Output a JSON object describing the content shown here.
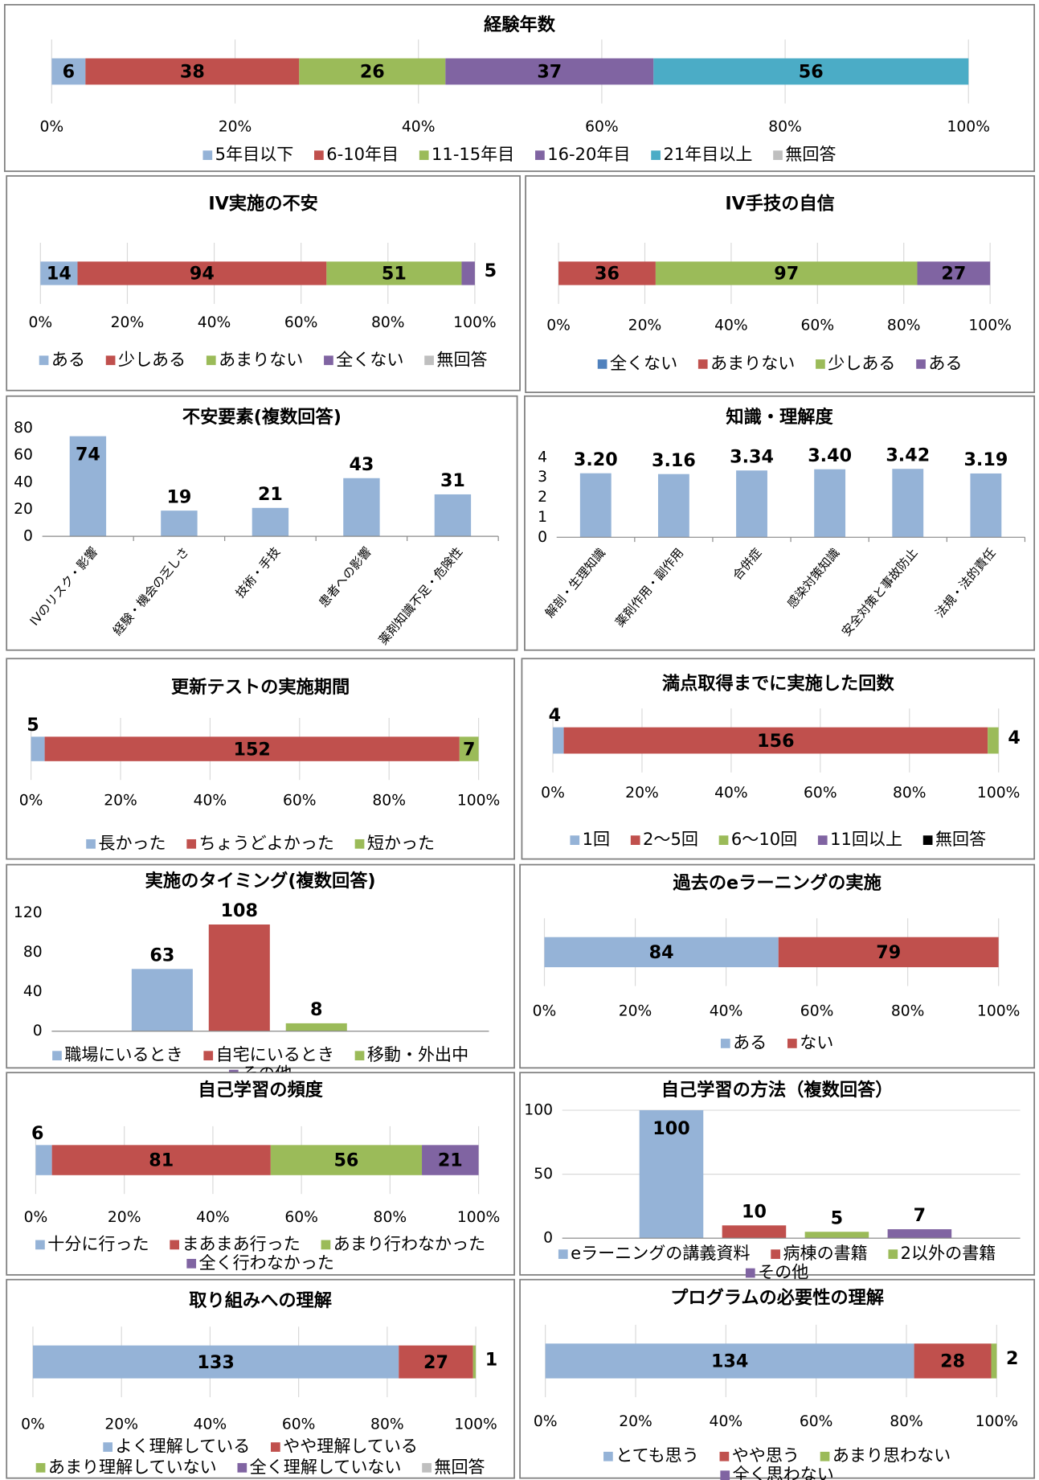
{
  "chart_data": [
    {
      "type": "stackedbar",
      "title": "経験年数",
      "xlim": [
        0,
        100
      ],
      "xticks": [
        {
          "value": 0,
          "label": "0%"
        },
        {
          "value": 20,
          "label": "20%"
        },
        {
          "value": 40,
          "label": "40%"
        },
        {
          "value": 60,
          "label": "60%"
        },
        {
          "value": 80,
          "label": "80%"
        },
        {
          "value": 100,
          "label": "100%"
        }
      ],
      "grid": true,
      "series": [
        {
          "name": "5年目以下",
          "color": "#95b3d7",
          "values": [
            6
          ]
        },
        {
          "name": "6-10年目",
          "color": "#c0504d",
          "values": [
            38
          ]
        },
        {
          "name": "11-15年目",
          "color": "#9bbb59",
          "values": [
            26
          ]
        },
        {
          "name": "16-20年目",
          "color": "#8064a2",
          "values": [
            37
          ]
        },
        {
          "name": "21年目以上",
          "color": "#4bacc6",
          "values": [
            56
          ]
        },
        {
          "name": "無回答",
          "color": "#bfbfbf",
          "values": [
            0
          ]
        }
      ]
    },
    {
      "type": "stackedbar",
      "title": "IV実施の不安",
      "xlim": [
        0,
        100
      ],
      "xticks": [
        {
          "value": 0,
          "label": "0%"
        },
        {
          "value": 20,
          "label": "20%"
        },
        {
          "value": 40,
          "label": "40%"
        },
        {
          "value": 60,
          "label": "60%"
        },
        {
          "value": 80,
          "label": "80%"
        },
        {
          "value": 100,
          "label": "100%"
        }
      ],
      "grid": true,
      "series": [
        {
          "name": "ある",
          "color": "#95b3d7",
          "values": [
            14
          ]
        },
        {
          "name": "少しある",
          "color": "#c0504d",
          "values": [
            94
          ]
        },
        {
          "name": "あまりない",
          "color": "#9bbb59",
          "values": [
            51
          ]
        },
        {
          "name": "全くない",
          "color": "#8064a2",
          "values": [
            5
          ]
        },
        {
          "name": "無回答",
          "color": "#bfbfbf",
          "values": [
            0
          ]
        }
      ]
    },
    {
      "type": "stackedbar",
      "title": "IV手技の自信",
      "xlim": [
        0,
        100
      ],
      "xticks": [
        {
          "value": 0,
          "label": "0%"
        },
        {
          "value": 20,
          "label": "20%"
        },
        {
          "value": 40,
          "label": "40%"
        },
        {
          "value": 60,
          "label": "60%"
        },
        {
          "value": 80,
          "label": "80%"
        },
        {
          "value": 100,
          "label": "100%"
        }
      ],
      "grid": true,
      "series": [
        {
          "name": "全くない",
          "color": "#4f81bd",
          "values": [
            0
          ]
        },
        {
          "name": "あまりない",
          "color": "#c0504d",
          "values": [
            36
          ]
        },
        {
          "name": "少しある",
          "color": "#9bbb59",
          "values": [
            97
          ]
        },
        {
          "name": "ある",
          "color": "#8064a2",
          "values": [
            27
          ]
        }
      ]
    },
    {
      "type": "bar",
      "title": "不安要素(複数回答)",
      "categories": [
        "IVのリスク・影響",
        "経験・機会の乏しさ",
        "技術・手技",
        "患者への影響",
        "薬剤知識不足・危険性"
      ],
      "values": [
        74,
        19,
        21,
        43,
        31
      ],
      "color": "#95b3d7",
      "ylim": [
        0,
        80
      ],
      "yticks": [
        0,
        20,
        40,
        60,
        80
      ],
      "grid": false
    },
    {
      "type": "bar",
      "title": "知識・理解度",
      "categories": [
        "解剖・生理知識",
        "薬剤作用・副作用",
        "合併症",
        "感染対策知識",
        "安全対策と事故防止",
        "法規・法的責任"
      ],
      "values": [
        3.2,
        3.16,
        3.34,
        3.4,
        3.42,
        3.19
      ],
      "value_labels": [
        "3.20",
        "3.16",
        "3.34",
        "3.40",
        "3.42",
        "3.19"
      ],
      "color": "#95b3d7",
      "ylim": [
        0,
        4
      ],
      "yticks": [
        0,
        1,
        2,
        3,
        4
      ],
      "grid": false
    },
    {
      "type": "stackedbar",
      "title": "更新テストの実施期間",
      "xlim": [
        0,
        100
      ],
      "xticks": [
        {
          "value": 0,
          "label": "0%"
        },
        {
          "value": 20,
          "label": "20%"
        },
        {
          "value": 40,
          "label": "40%"
        },
        {
          "value": 60,
          "label": "60%"
        },
        {
          "value": 80,
          "label": "80%"
        },
        {
          "value": 100,
          "label": "100%"
        }
      ],
      "grid": true,
      "series": [
        {
          "name": "長かった",
          "color": "#95b3d7",
          "values": [
            5
          ]
        },
        {
          "name": "ちょうどよかった",
          "color": "#c0504d",
          "values": [
            152
          ]
        },
        {
          "name": "短かった",
          "color": "#9bbb59",
          "values": [
            7
          ]
        }
      ]
    },
    {
      "type": "stackedbar",
      "title": "満点取得までに実施した回数",
      "xlim": [
        0,
        100
      ],
      "xticks": [
        {
          "value": 0,
          "label": "0%"
        },
        {
          "value": 20,
          "label": "20%"
        },
        {
          "value": 40,
          "label": "40%"
        },
        {
          "value": 60,
          "label": "60%"
        },
        {
          "value": 80,
          "label": "80%"
        },
        {
          "value": 100,
          "label": "100%"
        }
      ],
      "grid": true,
      "series": [
        {
          "name": "1回",
          "color": "#95b3d7",
          "values": [
            4
          ]
        },
        {
          "name": "2～5回",
          "color": "#c0504d",
          "values": [
            156
          ]
        },
        {
          "name": "6～10回",
          "color": "#9bbb59",
          "values": [
            4
          ]
        },
        {
          "name": "11回以上",
          "color": "#8064a2",
          "values": [
            0
          ]
        },
        {
          "name": "無回答",
          "color": "#000000",
          "values": [
            0
          ]
        }
      ]
    },
    {
      "type": "bar",
      "title": "実施のタイミング(複数回答)",
      "categories": [
        null
      ],
      "ylim": [
        0,
        120
      ],
      "yticks": [
        0,
        40,
        80,
        120
      ],
      "grid": false,
      "series": [
        {
          "name": "職場にいるとき",
          "color": "#95b3d7",
          "values": [
            63
          ]
        },
        {
          "name": "自宅にいるとき",
          "color": "#c0504d",
          "values": [
            108
          ]
        },
        {
          "name": "移動・外出中",
          "color": "#9bbb59",
          "values": [
            8
          ]
        },
        {
          "name": "その他",
          "color": "#8064a2",
          "values": [
            0
          ]
        }
      ]
    },
    {
      "type": "stackedbar",
      "title": "過去のeラーニングの実施",
      "xlim": [
        0,
        100
      ],
      "xticks": [
        {
          "value": 0,
          "label": "0%"
        },
        {
          "value": 20,
          "label": "20%"
        },
        {
          "value": 40,
          "label": "40%"
        },
        {
          "value": 60,
          "label": "60%"
        },
        {
          "value": 80,
          "label": "80%"
        },
        {
          "value": 100,
          "label": "100%"
        }
      ],
      "grid": true,
      "series": [
        {
          "name": "ある",
          "color": "#95b3d7",
          "values": [
            84
          ]
        },
        {
          "name": "ない",
          "color": "#c0504d",
          "values": [
            79
          ]
        }
      ]
    },
    {
      "type": "stackedbar",
      "title": "自己学習の頻度",
      "xlim": [
        0,
        100
      ],
      "xticks": [
        {
          "value": 0,
          "label": "0%"
        },
        {
          "value": 20,
          "label": "20%"
        },
        {
          "value": 40,
          "label": "40%"
        },
        {
          "value": 60,
          "label": "60%"
        },
        {
          "value": 80,
          "label": "80%"
        },
        {
          "value": 100,
          "label": "100%"
        }
      ],
      "grid": true,
      "series": [
        {
          "name": "十分に行った",
          "color": "#95b3d7",
          "values": [
            6
          ]
        },
        {
          "name": "まあまあ行った",
          "color": "#c0504d",
          "values": [
            81
          ]
        },
        {
          "name": "あまり行わなかった",
          "color": "#9bbb59",
          "values": [
            56
          ]
        },
        {
          "name": "全く行わなかった",
          "color": "#8064a2",
          "values": [
            21
          ]
        }
      ]
    },
    {
      "type": "bar",
      "title": "自己学習の方法（複数回答）",
      "categories": [
        null
      ],
      "ylim": [
        0,
        100
      ],
      "yticks": [
        0,
        50,
        100
      ],
      "grid": true,
      "series": [
        {
          "name": "eラーニングの講義資料",
          "color": "#95b3d7",
          "values": [
            100
          ]
        },
        {
          "name": "病棟の書籍",
          "color": "#c0504d",
          "values": [
            10
          ]
        },
        {
          "name": "2以外の書籍",
          "color": "#9bbb59",
          "values": [
            5
          ]
        },
        {
          "name": "その他",
          "color": "#8064a2",
          "values": [
            7
          ]
        }
      ]
    },
    {
      "type": "stackedbar",
      "title": "取り組みへの理解",
      "xlim": [
        0,
        100
      ],
      "xticks": [
        {
          "value": 0,
          "label": "0%"
        },
        {
          "value": 20,
          "label": "20%"
        },
        {
          "value": 40,
          "label": "40%"
        },
        {
          "value": 60,
          "label": "60%"
        },
        {
          "value": 80,
          "label": "80%"
        },
        {
          "value": 100,
          "label": "100%"
        }
      ],
      "grid": true,
      "series": [
        {
          "name": "よく理解している",
          "color": "#95b3d7",
          "values": [
            133
          ]
        },
        {
          "name": "やや理解している",
          "color": "#c0504d",
          "values": [
            27
          ]
        },
        {
          "name": "あまり理解していない",
          "color": "#9bbb59",
          "values": [
            1
          ]
        },
        {
          "name": "全く理解していない",
          "color": "#8064a2",
          "values": [
            0
          ]
        },
        {
          "name": "無回答",
          "color": "#bfbfbf",
          "values": [
            0
          ]
        }
      ]
    },
    {
      "type": "stackedbar",
      "title": "プログラムの必要性の理解",
      "xlim": [
        0,
        100
      ],
      "xticks": [
        {
          "value": 0,
          "label": "0%"
        },
        {
          "value": 20,
          "label": "20%"
        },
        {
          "value": 40,
          "label": "40%"
        },
        {
          "value": 60,
          "label": "60%"
        },
        {
          "value": 80,
          "label": "80%"
        },
        {
          "value": 100,
          "label": "100%"
        }
      ],
      "grid": true,
      "series": [
        {
          "name": "とても思う",
          "color": "#95b3d7",
          "values": [
            134
          ]
        },
        {
          "name": "やや思う",
          "color": "#c0504d",
          "values": [
            28
          ]
        },
        {
          "name": "あまり思わない",
          "color": "#9bbb59",
          "values": [
            2
          ]
        },
        {
          "name": "全く思わない",
          "color": "#8064a2",
          "values": [
            0
          ]
        }
      ]
    }
  ]
}
